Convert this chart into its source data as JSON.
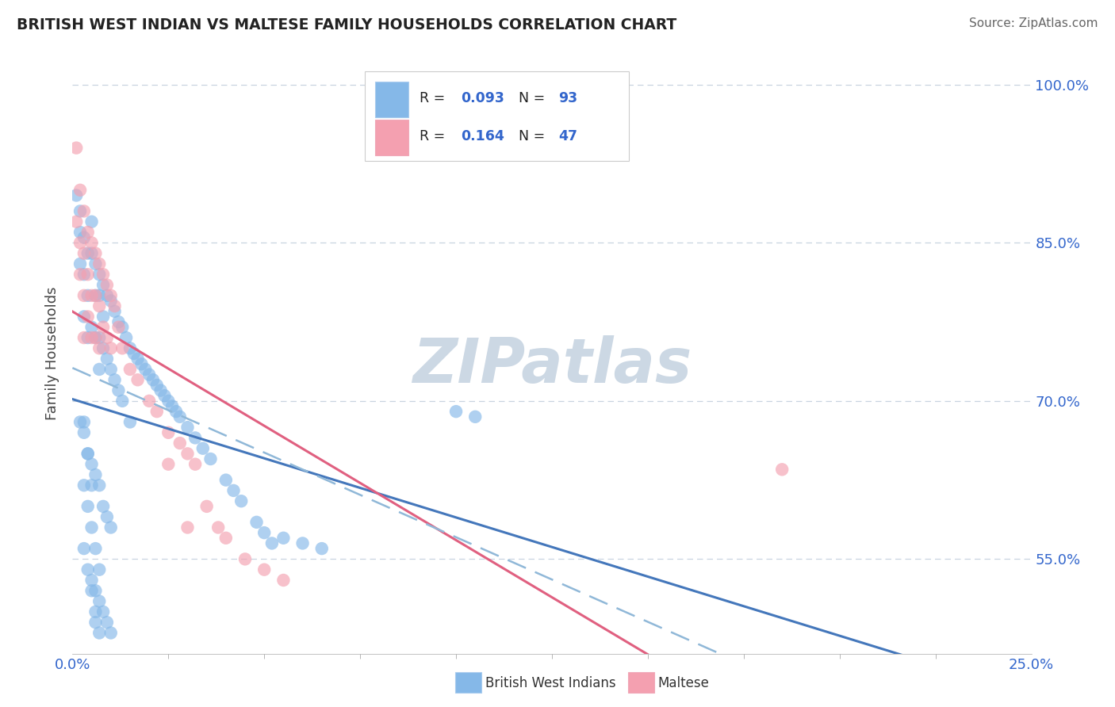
{
  "title": "BRITISH WEST INDIAN VS MALTESE FAMILY HOUSEHOLDS CORRELATION CHART",
  "source_text": "Source: ZipAtlas.com",
  "ylabel": "Family Households",
  "yticks": [
    "55.0%",
    "70.0%",
    "85.0%",
    "100.0%"
  ],
  "ytick_vals": [
    0.55,
    0.7,
    0.85,
    1.0
  ],
  "xmin": 0.0,
  "xmax": 0.25,
  "ymin": 0.46,
  "ymax": 1.03,
  "r_bwi": 0.093,
  "n_bwi": 93,
  "r_maltese": 0.164,
  "n_maltese": 47,
  "color_bwi": "#85b8e8",
  "color_maltese": "#f4a0b0",
  "trendline_bwi_solid_color": "#4477bb",
  "trendline_maltese_solid_color": "#e06080",
  "trendline_dashed_color": "#90b8d8",
  "watermark": "ZIPatlas",
  "watermark_color": "#d0dce8",
  "legend_text_color": "#3366cc",
  "legend_label_color": "#222222",
  "bwi_x": [
    0.001,
    0.002,
    0.002,
    0.002,
    0.003,
    0.003,
    0.003,
    0.004,
    0.004,
    0.004,
    0.005,
    0.005,
    0.005,
    0.006,
    0.006,
    0.006,
    0.007,
    0.007,
    0.007,
    0.007,
    0.008,
    0.008,
    0.008,
    0.009,
    0.009,
    0.01,
    0.01,
    0.011,
    0.011,
    0.012,
    0.012,
    0.013,
    0.013,
    0.014,
    0.015,
    0.015,
    0.016,
    0.017,
    0.018,
    0.019,
    0.02,
    0.021,
    0.022,
    0.023,
    0.024,
    0.025,
    0.026,
    0.027,
    0.028,
    0.03,
    0.032,
    0.034,
    0.036,
    0.04,
    0.042,
    0.044,
    0.048,
    0.05,
    0.052,
    0.055,
    0.06,
    0.065,
    0.1,
    0.105,
    0.002,
    0.003,
    0.004,
    0.005,
    0.006,
    0.007,
    0.008,
    0.009,
    0.01,
    0.003,
    0.004,
    0.005,
    0.003,
    0.004,
    0.005,
    0.006,
    0.007,
    0.005,
    0.006,
    0.007,
    0.008,
    0.009,
    0.01,
    0.003,
    0.004,
    0.005,
    0.006,
    0.006,
    0.007
  ],
  "bwi_y": [
    0.895,
    0.88,
    0.86,
    0.83,
    0.855,
    0.82,
    0.78,
    0.84,
    0.8,
    0.76,
    0.87,
    0.84,
    0.77,
    0.83,
    0.8,
    0.76,
    0.82,
    0.8,
    0.76,
    0.73,
    0.81,
    0.78,
    0.75,
    0.8,
    0.74,
    0.795,
    0.73,
    0.785,
    0.72,
    0.775,
    0.71,
    0.77,
    0.7,
    0.76,
    0.75,
    0.68,
    0.745,
    0.74,
    0.735,
    0.73,
    0.725,
    0.72,
    0.715,
    0.71,
    0.705,
    0.7,
    0.695,
    0.69,
    0.685,
    0.675,
    0.665,
    0.655,
    0.645,
    0.625,
    0.615,
    0.605,
    0.585,
    0.575,
    0.565,
    0.57,
    0.565,
    0.56,
    0.69,
    0.685,
    0.68,
    0.67,
    0.65,
    0.64,
    0.63,
    0.62,
    0.6,
    0.59,
    0.58,
    0.68,
    0.65,
    0.62,
    0.62,
    0.6,
    0.58,
    0.56,
    0.54,
    0.53,
    0.52,
    0.51,
    0.5,
    0.49,
    0.48,
    0.56,
    0.54,
    0.52,
    0.5,
    0.49,
    0.48
  ],
  "maltese_x": [
    0.001,
    0.001,
    0.002,
    0.002,
    0.002,
    0.003,
    0.003,
    0.003,
    0.003,
    0.004,
    0.004,
    0.004,
    0.005,
    0.005,
    0.005,
    0.006,
    0.006,
    0.006,
    0.007,
    0.007,
    0.007,
    0.008,
    0.008,
    0.009,
    0.009,
    0.01,
    0.01,
    0.011,
    0.012,
    0.013,
    0.015,
    0.017,
    0.02,
    0.022,
    0.025,
    0.025,
    0.028,
    0.03,
    0.032,
    0.035,
    0.038,
    0.04,
    0.045,
    0.05,
    0.055,
    0.185,
    0.03
  ],
  "maltese_y": [
    0.94,
    0.87,
    0.9,
    0.85,
    0.82,
    0.88,
    0.84,
    0.8,
    0.76,
    0.86,
    0.82,
    0.78,
    0.85,
    0.8,
    0.76,
    0.84,
    0.8,
    0.76,
    0.83,
    0.79,
    0.75,
    0.82,
    0.77,
    0.81,
    0.76,
    0.8,
    0.75,
    0.79,
    0.77,
    0.75,
    0.73,
    0.72,
    0.7,
    0.69,
    0.67,
    0.64,
    0.66,
    0.65,
    0.64,
    0.6,
    0.58,
    0.57,
    0.55,
    0.54,
    0.53,
    0.635,
    0.58
  ]
}
